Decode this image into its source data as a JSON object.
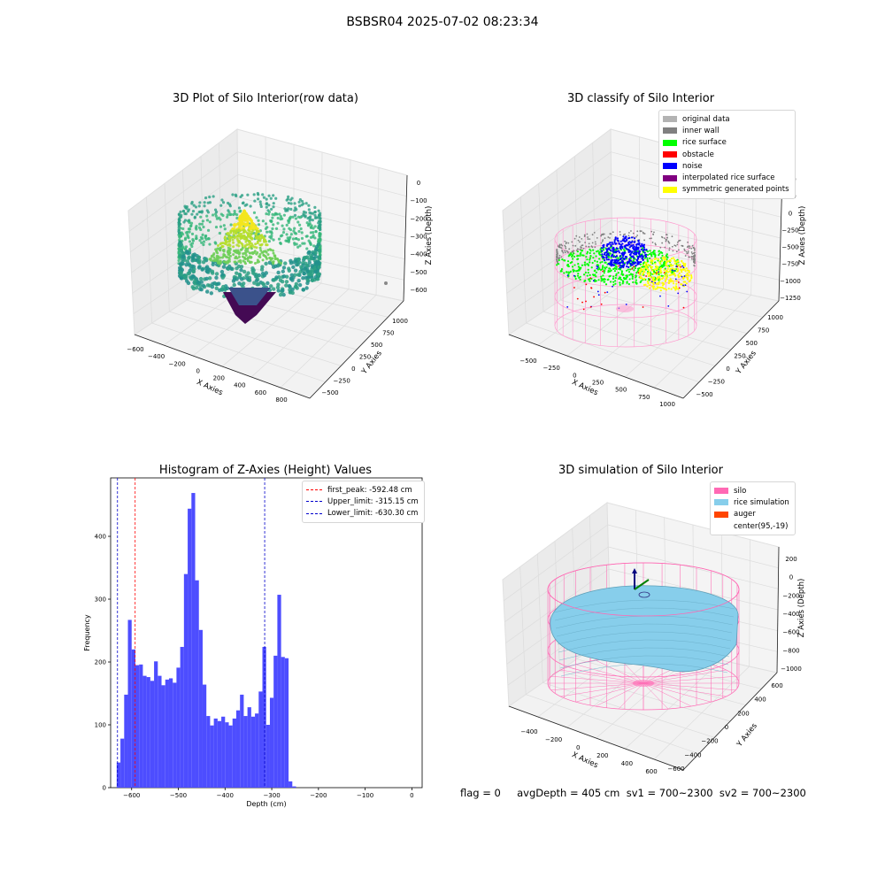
{
  "figure": {
    "suptitle": "BSBSR04 2025-07-02 08:23:34",
    "status_line": "flag = 0     avgDepth = 405 cm  sv1 = 700~2300  sv2 = 700~2300"
  },
  "chart_data": [
    {
      "type": "scatter",
      "title": "3D Plot of Silo Interior(row data)",
      "xlabel": "X Axies",
      "ylabel": "Y Axies",
      "zlabel": "Z Axies (Depth)",
      "x_ticks": [
        "−600",
        "−400",
        "−200",
        "0",
        "200",
        "400",
        "600",
        "800"
      ],
      "y_ticks": [
        "−500",
        "−250",
        "0",
        "250",
        "500",
        "750",
        "1000"
      ],
      "z_ticks": [
        "0",
        "−100",
        "−200",
        "−300",
        "−400",
        "−500",
        "−600"
      ],
      "colormap": "viridis",
      "colors": {
        "high": "#f3e51e",
        "mid": "#2ba084",
        "midlow": "#3a5f8b",
        "low": "#440a54"
      }
    },
    {
      "type": "scatter",
      "title": "3D classify of Silo Interior",
      "xlabel": "X Axies",
      "ylabel": "Y Axies",
      "zlabel": "Z Axies (Depth)",
      "x_ticks": [
        "−500",
        "−250",
        "0",
        "250",
        "500",
        "750",
        "1000"
      ],
      "y_ticks": [
        "−500",
        "−250",
        "0",
        "250",
        "500",
        "750",
        "1000"
      ],
      "z_ticks": [
        "500",
        "250",
        "0",
        "−250",
        "−500",
        "−750",
        "−1000",
        "−1250"
      ],
      "legend": [
        {
          "label": "original data",
          "color": "#b3b3b3"
        },
        {
          "label": "inner wall",
          "color": "#808080"
        },
        {
          "label": "rice surface",
          "color": "#00ff00"
        },
        {
          "label": "obstacle",
          "color": "#ff0000"
        },
        {
          "label": "noise",
          "color": "#0000ff"
        },
        {
          "label": "interpolated rice surface",
          "color": "#800080"
        },
        {
          "label": "symmetric generated points",
          "color": "#ffff00"
        }
      ]
    },
    {
      "type": "bar",
      "title": "Histogram of Z-Axies (Height) Values",
      "xlabel": "Depth (cm)",
      "ylabel": "Frequency",
      "xlim": [
        -645,
        22
      ],
      "ylim": [
        0,
        493
      ],
      "x_ticks": [
        -600,
        -500,
        -400,
        -300,
        -200,
        -100,
        0
      ],
      "y_ticks": [
        0,
        100,
        200,
        300,
        400
      ],
      "bin_start": -632,
      "bin_width": 8,
      "values": [
        40,
        78,
        148,
        267,
        220,
        195,
        196,
        178,
        176,
        170,
        201,
        178,
        163,
        172,
        174,
        167,
        191,
        224,
        340,
        444,
        469,
        330,
        251,
        164,
        114,
        99,
        110,
        106,
        113,
        104,
        99,
        110,
        123,
        148,
        114,
        128,
        113,
        118,
        153,
        224,
        100,
        143,
        210,
        307,
        208,
        206,
        10,
        2
      ],
      "bar_color": "#4d4dff",
      "lines": [
        {
          "label": "first_peak: -592.48 cm",
          "x": -592.48,
          "color": "#ff0000"
        },
        {
          "label": "Upper_limit: -315.15 cm",
          "x": -315.15,
          "color": "#0000cc"
        },
        {
          "label": "Lower_limit: -630.30 cm",
          "x": -630.3,
          "color": "#0000cc"
        }
      ]
    },
    {
      "type": "area",
      "title": "3D simulation of Silo Interior",
      "xlabel": "X Axies",
      "ylabel": "Y Axies",
      "zlabel": "Z Axies (Depth)",
      "x_ticks": [
        "−400",
        "−200",
        "0",
        "200",
        "400",
        "600"
      ],
      "y_ticks": [
        "−600",
        "−400",
        "−200",
        "0",
        "200",
        "400",
        "600"
      ],
      "z_ticks": [
        "200",
        "0",
        "−200",
        "−400",
        "−600",
        "−800",
        "−1000"
      ],
      "legend": [
        {
          "label": "silo",
          "color": "#ff69b4"
        },
        {
          "label": "rice simulation",
          "color": "#87ceeb"
        },
        {
          "label": "auger",
          "color": "#ff4500"
        },
        {
          "label": "center(95,-19)",
          "color": "#ffffff"
        }
      ]
    }
  ]
}
